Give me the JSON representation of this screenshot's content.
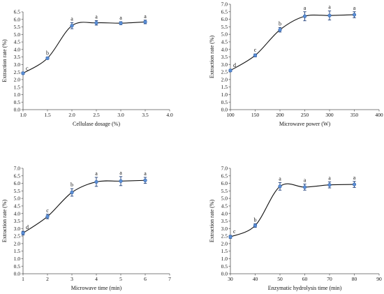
{
  "chart_data": [
    {
      "type": "line",
      "xlabel": "Cellulase dosage  (%)",
      "ylabel": "Extraction rate (%)",
      "xlim": [
        1.0,
        4.0
      ],
      "ylim": [
        0.0,
        6.5
      ],
      "xticks": [
        "1.0",
        "1.5",
        "2.0",
        "2.5",
        "3.0",
        "3.5",
        "4.0"
      ],
      "yticks": [
        "0.0",
        "0.5",
        "1.0",
        "1.5",
        "2.0",
        "2.5",
        "3.0",
        "3.5",
        "4.0",
        "4.5",
        "5.0",
        "5.5",
        "6.0",
        "6.5"
      ],
      "x": [
        1.0,
        1.5,
        2.0,
        2.5,
        3.0,
        3.5
      ],
      "y": [
        2.42,
        3.42,
        5.58,
        5.77,
        5.75,
        5.83
      ],
      "err": [
        0.07,
        0.08,
        0.2,
        0.15,
        0.1,
        0.12
      ],
      "labels": [
        "c",
        "b",
        "a",
        "a",
        "a",
        "a"
      ]
    },
    {
      "type": "line",
      "xlabel": "Microwave power (W)",
      "ylabel": "Extraction rate (%)",
      "xlim": [
        100,
        400
      ],
      "ylim": [
        0.0,
        7.0
      ],
      "xticks": [
        "100",
        "150",
        "200",
        "250",
        "300",
        "350",
        "400"
      ],
      "yticks": [
        "0.0",
        "0.5",
        "1.0",
        "1.5",
        "2.0",
        "2.5",
        "3.0",
        "3.5",
        "4.0",
        "4.5",
        "5.0",
        "5.5",
        "6.0",
        "6.5",
        "7.0"
      ],
      "x": [
        100,
        150,
        200,
        250,
        300,
        350
      ],
      "y": [
        2.6,
        3.6,
        5.3,
        6.2,
        6.25,
        6.3
      ],
      "err": [
        0.08,
        0.1,
        0.15,
        0.3,
        0.3,
        0.2
      ],
      "labels": [
        "d",
        "c",
        "b",
        "a",
        "a",
        "a"
      ]
    },
    {
      "type": "line",
      "xlabel": "Microwave time (min)",
      "ylabel": "Extraction rate (%)",
      "xlim": [
        1,
        7
      ],
      "ylim": [
        0.0,
        7.0
      ],
      "xticks": [
        "1",
        "2",
        "3",
        "4",
        "5",
        "6",
        "7"
      ],
      "yticks": [
        "0.0",
        "0.5",
        "1.0",
        "1.5",
        "2.0",
        "2.5",
        "3.0",
        "3.5",
        "4.0",
        "4.5",
        "5.0",
        "5.5",
        "6.0",
        "6.5",
        "7.0"
      ],
      "x": [
        1,
        2,
        3,
        4,
        5,
        6
      ],
      "y": [
        2.7,
        3.8,
        5.4,
        6.1,
        6.15,
        6.2
      ],
      "err": [
        0.12,
        0.15,
        0.25,
        0.3,
        0.3,
        0.2
      ],
      "labels": [
        "d",
        "c",
        "b",
        "a",
        "a",
        "a"
      ]
    },
    {
      "type": "line",
      "xlabel": "Enzymatic hydrolysis time (min)",
      "ylabel": "Extraction rate (%)",
      "xlim": [
        30,
        90
      ],
      "ylim": [
        0.0,
        7.0
      ],
      "xticks": [
        "30",
        "40",
        "50",
        "60",
        "70",
        "80",
        "90"
      ],
      "yticks": [
        "0.0",
        "0.5",
        "1.0",
        "1.5",
        "2.0",
        "2.5",
        "3.0",
        "3.5",
        "4.0",
        "4.5",
        "5.0",
        "5.5",
        "6.0",
        "6.5",
        "7.0"
      ],
      "x": [
        30,
        40,
        50,
        60,
        70,
        80
      ],
      "y": [
        2.45,
        3.2,
        5.8,
        5.75,
        5.9,
        5.93
      ],
      "err": [
        0.1,
        0.12,
        0.25,
        0.2,
        0.2,
        0.2
      ],
      "labels": [
        "c",
        "b",
        "a",
        "a",
        "a",
        "a"
      ]
    }
  ]
}
